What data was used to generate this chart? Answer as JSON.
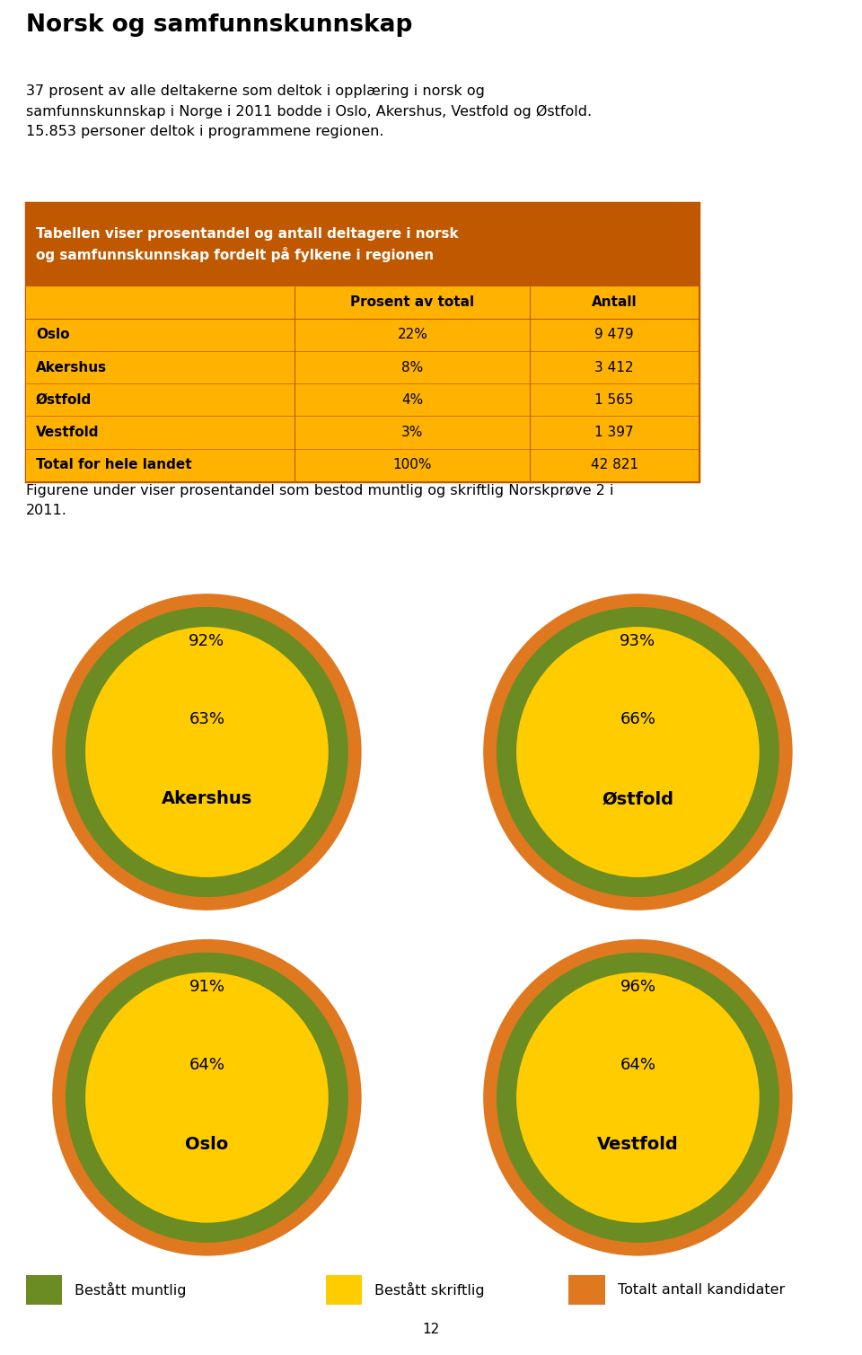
{
  "title": "Norsk og samfunnskunnskap",
  "intro_text": "37 prosent av alle deltakerne som deltok i opplæring i norsk og\nsamfunnskunnskap i Norge i 2011 bodde i Oslo, Akershus, Vestfold og Østfold.\n15.853 personer deltok i programmene regionen.",
  "table_header": "Tabellen viser prosentandel og antall deltagere i norsk\nog samfunnskunnskap fordelt på fylkene i regionen",
  "table_col1": "Prosent av total",
  "table_col2": "Antall",
  "table_rows": [
    {
      "name": "Oslo",
      "prosent": "22%",
      "antall": "9 479"
    },
    {
      "name": "Akershus",
      "prosent": "8%",
      "antall": "3 412"
    },
    {
      "name": "Østfold",
      "prosent": "4%",
      "antall": "1 565"
    },
    {
      "name": "Vestfold",
      "prosent": "3%",
      "antall": "1 397"
    },
    {
      "name": "Total for hele landet",
      "prosent": "100%",
      "antall": "42 821"
    }
  ],
  "fig_text": "Figurene under viser prosentandel som bestod muntlig og skriftlig Norskprøve 2 i\n2011.",
  "circle_configs": [
    {
      "name": "Akershus",
      "outer_pct": "92%",
      "inner_pct": "63%",
      "col": 0,
      "row": 0
    },
    {
      "name": "Østfold",
      "outer_pct": "93%",
      "inner_pct": "66%",
      "col": 1,
      "row": 0
    },
    {
      "name": "Oslo",
      "outer_pct": "91%",
      "inner_pct": "64%",
      "col": 0,
      "row": 1
    },
    {
      "name": "Vestfold",
      "outer_pct": "96%",
      "inner_pct": "64%",
      "col": 1,
      "row": 1
    }
  ],
  "color_orange": "#E07820",
  "color_green": "#6B8C23",
  "color_yellow": "#FFCC00",
  "color_table_header_bg": "#C05800",
  "color_table_body_bg": "#FFB300",
  "color_table_border": "#C05800",
  "legend_items": [
    {
      "label": "Bestått muntlig",
      "color": "#6B8C23"
    },
    {
      "label": "Bestått skriftlig",
      "color": "#FFCC00"
    },
    {
      "label": "Totalt antall kandidater",
      "color": "#E07820"
    }
  ],
  "page_number": "12"
}
